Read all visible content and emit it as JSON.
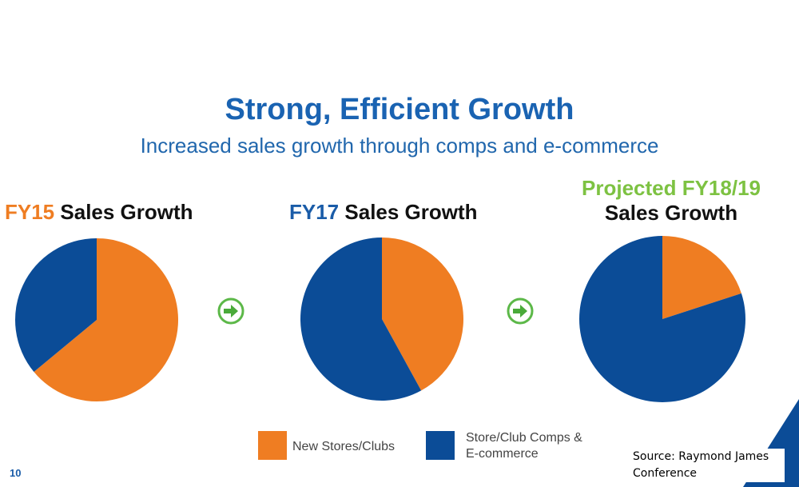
{
  "title": "Strong, Efficient Growth",
  "subtitle": "Increased sales growth through comps and e-commerce",
  "colors": {
    "orange": "#ef7d22",
    "blue": "#0b4c97",
    "green": "#7dc242",
    "title_blue": "#1a63b2"
  },
  "chart_data": [
    {
      "type": "pie",
      "title_year": "FY15",
      "title_rest": "Sales Growth",
      "slices": [
        {
          "label": "New Stores/Clubs",
          "value": 64
        },
        {
          "label": "Store/Club Comps & E-commerce",
          "value": 36
        }
      ]
    },
    {
      "type": "pie",
      "title_year": "FY17",
      "title_rest": "Sales Growth",
      "slices": [
        {
          "label": "New Stores/Clubs",
          "value": 42
        },
        {
          "label": "Store/Club Comps & E-commerce",
          "value": 58
        }
      ]
    },
    {
      "type": "pie",
      "title_year": "Projected FY18/19",
      "title_rest": "Sales Growth",
      "slices": [
        {
          "label": "New Stores/Clubs",
          "value": 20
        },
        {
          "label": "Store/Club Comps & E-commerce",
          "value": 80
        }
      ]
    }
  ],
  "legend": {
    "new_stores": "New Stores/Clubs",
    "comps": "Store/Club Comps & E-commerce"
  },
  "arrow_icon": "right-arrow-circle-icon",
  "page_number": "10",
  "source": "Source: Raymond James Conference"
}
